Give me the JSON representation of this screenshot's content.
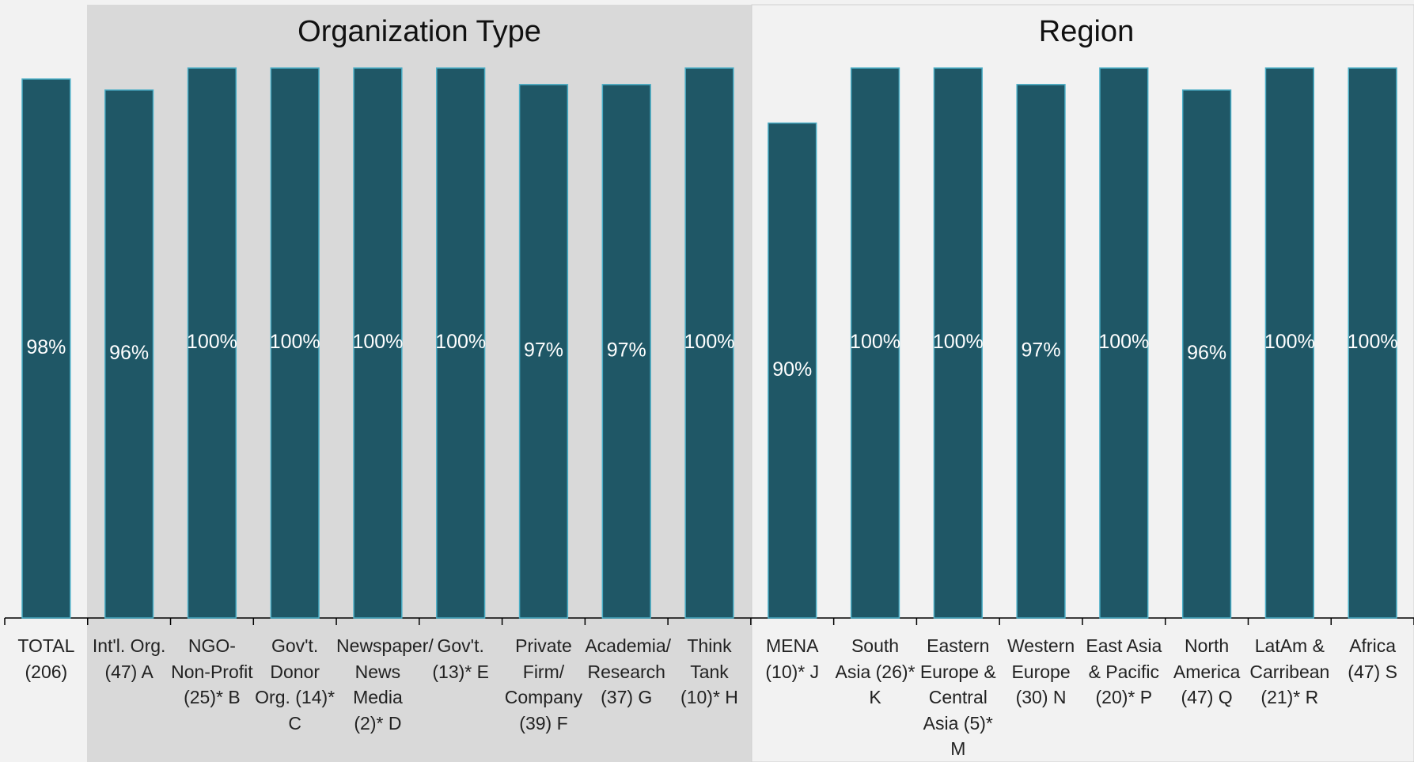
{
  "chart_data": {
    "type": "bar",
    "group_labels": [
      "Organization Type",
      "Region"
    ],
    "categories": [
      "TOTAL (206)",
      "Int'l. Org. (47) A",
      "NGO-Non-Profit (25)* B",
      "Gov't. Donor Org. (14)* C",
      "Newspaper/ News Media (2)* D",
      "Gov't. (13)* E",
      "Private Firm/ Company (39) F",
      "Academia/ Research (37) G",
      "Think Tank (10)* H",
      "MENA (10)* J",
      "South Asia (26)* K",
      "Eastern Europe & Central Asia (5)* M",
      "Western Europe (30) N",
      "East Asia & Pacific (20)* P",
      "North America (47) Q",
      "LatAm & Carribean (21)* R",
      "Africa (47) S"
    ],
    "values": [
      98,
      96,
      100,
      100,
      100,
      100,
      97,
      97,
      100,
      90,
      100,
      100,
      97,
      100,
      96,
      100,
      100
    ],
    "value_labels": [
      "98%",
      "96%",
      "100%",
      "100%",
      "100%",
      "100%",
      "97%",
      "97%",
      "100%",
      "90%",
      "100%",
      "100%",
      "97%",
      "100%",
      "96%",
      "100%",
      "100%"
    ],
    "color": "#1f5766",
    "ylim": [
      0,
      100
    ]
  }
}
